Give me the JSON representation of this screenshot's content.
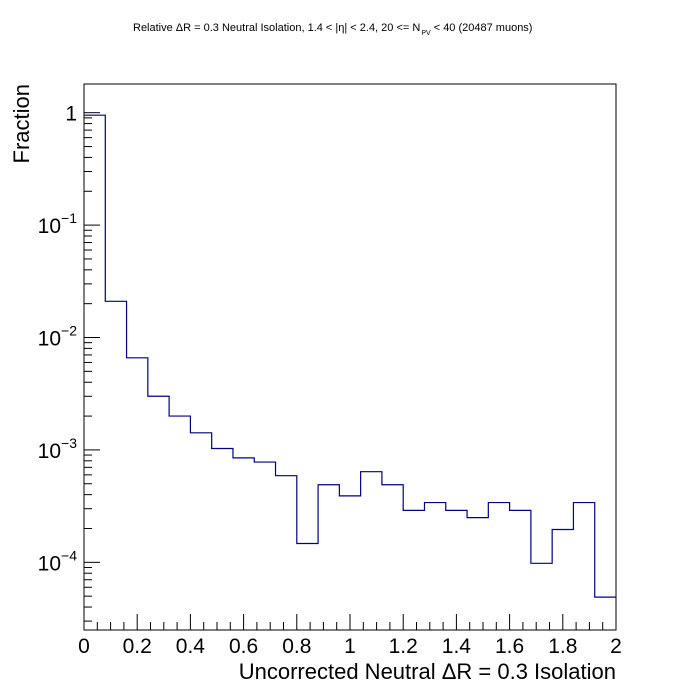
{
  "chart_data": {
    "type": "histogram",
    "title": {
      "main": "Relative ΔR = 0.3 Neutral Isolation, 1.4 < |η| < 2.4, 20 <= N",
      "subscript": "PV",
      "tail": " < 40 (20487 muons)"
    },
    "xlabel": "Uncorrected Neutral ΔR = 0.3 Isolation",
    "ylabel": "Fraction",
    "xlim": [
      0,
      2
    ],
    "ylim": [
      2.5e-05,
      1.8
    ],
    "log_y": true,
    "line_color": "#000080",
    "x_ticks": [
      {
        "value": 0,
        "label": "0"
      },
      {
        "value": 0.2,
        "label": "0.2"
      },
      {
        "value": 0.4,
        "label": "0.4"
      },
      {
        "value": 0.6,
        "label": "0.6"
      },
      {
        "value": 0.8,
        "label": "0.8"
      },
      {
        "value": 1.0,
        "label": "1"
      },
      {
        "value": 1.2,
        "label": "1.2"
      },
      {
        "value": 1.4,
        "label": "1.4"
      },
      {
        "value": 1.6,
        "label": "1.6"
      },
      {
        "value": 1.8,
        "label": "1.8"
      },
      {
        "value": 2.0,
        "label": "2"
      }
    ],
    "y_ticks": [
      {
        "value": 1,
        "base": "1",
        "exp": ""
      },
      {
        "value": 0.1,
        "base": "10",
        "exp": "−1"
      },
      {
        "value": 0.01,
        "base": "10",
        "exp": "−2"
      },
      {
        "value": 0.001,
        "base": "10",
        "exp": "−3"
      },
      {
        "value": 0.0001,
        "base": "10",
        "exp": "−4"
      }
    ],
    "bin_edges": [
      0,
      0.08,
      0.16,
      0.24,
      0.32,
      0.4,
      0.48,
      0.56,
      0.64,
      0.72,
      0.8,
      0.88,
      0.96,
      1.04,
      1.12,
      1.2,
      1.28,
      1.36,
      1.44,
      1.52,
      1.6,
      1.68,
      1.76,
      1.84,
      1.92,
      2.0
    ],
    "values": [
      0.95,
      0.021,
      0.0066,
      0.003,
      0.002,
      0.00142,
      0.00103,
      0.00085,
      0.00078,
      0.00059,
      0.000147,
      0.00049,
      0.00039,
      0.00064,
      0.00049,
      0.00029,
      0.00034,
      0.00029,
      0.00025,
      0.00034,
      0.00029,
      9.8e-05,
      0.000196,
      0.00034,
      4.9e-05
    ],
    "grid": false,
    "legend": "none"
  }
}
